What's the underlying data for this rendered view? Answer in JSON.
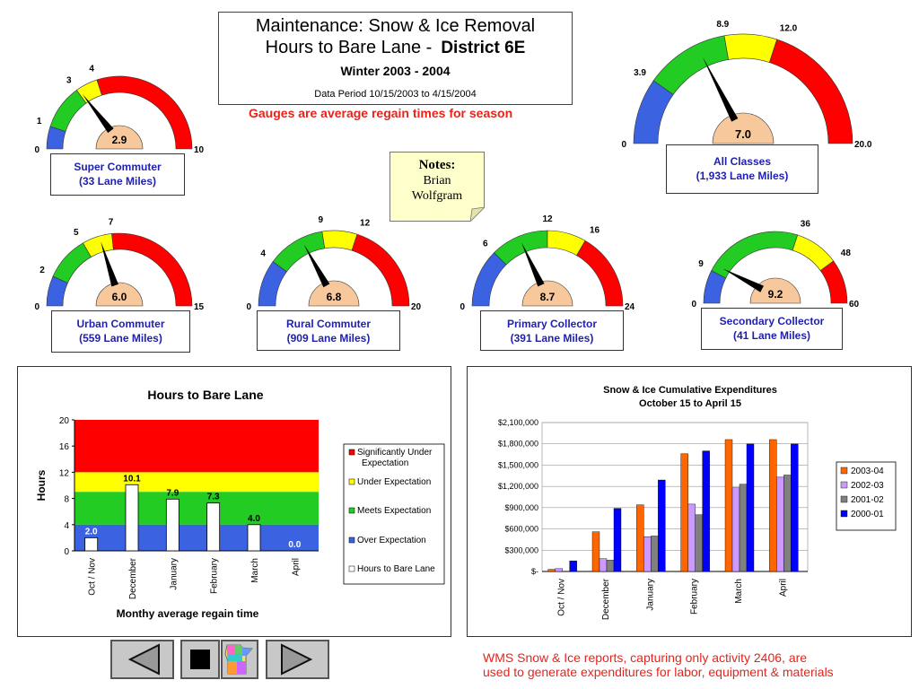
{
  "header": {
    "title_line1": "Maintenance: Snow & Ice Removal",
    "title_line2": "Hours to Bare Lane -",
    "district": "District 6E",
    "winter": "Winter  2003 - 2004",
    "data_period": "Data Period 10/15/2003 to 4/15/2004",
    "subtitle": "Gauges are average regain times for season"
  },
  "notes": {
    "title": "Notes:",
    "line1": "Brian",
    "line2": "Wolfgram"
  },
  "colors": {
    "blue": "#3b62e0",
    "green": "#22cc22",
    "yellow": "#ffff00",
    "red": "#ff0000",
    "hub": "#f7c89b"
  },
  "gauges": [
    {
      "name": "Super Commuter",
      "miles": "(33 Lane Miles)",
      "value": 2.9,
      "value_label": "2.9",
      "max": 10,
      "thresholds": [
        1,
        3,
        4
      ],
      "tick_labels": [
        "0",
        "1",
        "3",
        "4",
        "10"
      ]
    },
    {
      "name": "All Classes",
      "miles": "(1,933 Lane Miles)",
      "value": 7.0,
      "value_label": "7.0",
      "max": 20,
      "thresholds": [
        3.9,
        8.9,
        12.0
      ],
      "tick_labels": [
        "0",
        "3.9",
        "8.9",
        "12.0",
        "20.0"
      ]
    },
    {
      "name": "Urban Commuter",
      "miles": "(559 Lane Miles)",
      "value": 6.0,
      "value_label": "6.0",
      "max": 15,
      "thresholds": [
        2,
        5,
        7
      ],
      "tick_labels": [
        "0",
        "2",
        "5",
        "7",
        "15"
      ]
    },
    {
      "name": "Rural Commuter",
      "miles": "(909 Lane Miles)",
      "value": 6.8,
      "value_label": "6.8",
      "max": 20,
      "thresholds": [
        4,
        9,
        12
      ],
      "tick_labels": [
        "0",
        "4",
        "9",
        "12",
        "20"
      ]
    },
    {
      "name": "Primary Collector",
      "miles": "(391 Lane Miles)",
      "value": 8.7,
      "value_label": "8.7",
      "max": 24,
      "thresholds": [
        6,
        12,
        16
      ],
      "tick_labels": [
        "0",
        "6",
        "12",
        "16",
        "24"
      ]
    },
    {
      "name": "Secondary Collector",
      "miles": "(41 Lane Miles)",
      "value": 9.2,
      "value_label": "9.2",
      "max": 60,
      "thresholds": [
        9,
        36,
        48
      ],
      "tick_labels": [
        "0",
        "9",
        "36",
        "48",
        "60"
      ]
    }
  ],
  "chart_data": [
    {
      "type": "bar",
      "title": "Hours to Bare Lane",
      "xlabel": "Monthy average regain time",
      "ylabel": "Hours",
      "ylim": [
        0,
        20
      ],
      "yticks": [
        "0",
        "4",
        "8",
        "12",
        "16",
        "20"
      ],
      "categories": [
        "Oct / Nov",
        "December",
        "January",
        "February",
        "March",
        "April"
      ],
      "bands": [
        {
          "name": "Significantly Under Expectation",
          "from": 12,
          "to": 20,
          "color": "#ff0000"
        },
        {
          "name": "Under Expectation",
          "from": 9,
          "to": 12,
          "color": "#ffff00"
        },
        {
          "name": "Meets Expectation",
          "from": 4,
          "to": 9,
          "color": "#22cc22"
        },
        {
          "name": "Over Expectation",
          "from": 0,
          "to": 4,
          "color": "#3b62e0"
        }
      ],
      "series": [
        {
          "name": "Hours to Bare Lane",
          "values": [
            2.0,
            10.1,
            7.9,
            7.3,
            4.0,
            0.0
          ],
          "labels": [
            "2.0",
            "10.1",
            "7.9",
            "7.3",
            "4.0",
            "0.0"
          ]
        }
      ],
      "legend_position": "right"
    },
    {
      "type": "bar",
      "title": "Snow & Ice Cumulative Expenditures",
      "subtitle": "October 15 to April 15",
      "ylim": [
        0,
        2100000
      ],
      "yticks": [
        "$-",
        "$300,000",
        "$600,000",
        "$900,000",
        "$1,200,000",
        "$1,500,000",
        "$1,800,000",
        "$2,100,000"
      ],
      "categories": [
        "Oct / Nov",
        "December",
        "January",
        "February",
        "March",
        "April"
      ],
      "series": [
        {
          "name": "2003-04",
          "color": "#ff6600",
          "values": [
            30000,
            560000,
            940000,
            1660000,
            1860000,
            1860000
          ]
        },
        {
          "name": "2002-03",
          "color": "#cc99ff",
          "values": [
            40000,
            180000,
            490000,
            950000,
            1180000,
            1330000
          ]
        },
        {
          "name": "2001-02",
          "color": "#808080",
          "values": [
            0,
            160000,
            500000,
            800000,
            1230000,
            1360000
          ]
        },
        {
          "name": "2000-01",
          "color": "#0000ff",
          "values": [
            150000,
            890000,
            1290000,
            1700000,
            1800000,
            1800000
          ]
        }
      ],
      "legend_position": "right"
    }
  ],
  "footer": {
    "note_line1": "WMS Snow & Ice reports, capturing only activity 2406, are",
    "note_line2": "used to generate expenditures for labor, equipment & materials"
  },
  "nav": {
    "prev_icon": "left-triangle-icon",
    "stop_icon": "stop-square-icon",
    "map_icon": "minnesota-map-icon",
    "next_icon": "right-triangle-icon"
  }
}
